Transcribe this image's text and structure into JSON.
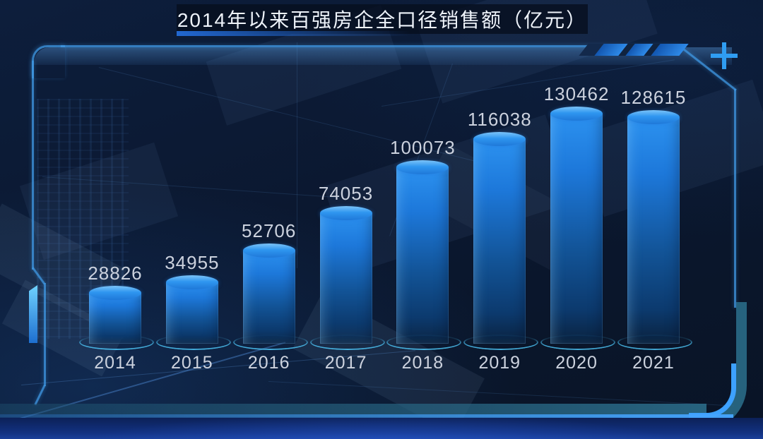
{
  "title": {
    "text": "2014年以来百强房企全口径销售额（亿元）"
  },
  "controls": {
    "expand_icon": "plus"
  },
  "chart_data": {
    "type": "bar",
    "title": "2014年以来百强房企全口径销售额（亿元）",
    "unit": "亿元",
    "categories": [
      "2014",
      "2015",
      "2016",
      "2017",
      "2018",
      "2019",
      "2020",
      "2021"
    ],
    "values": [
      28826,
      34955,
      52706,
      74053,
      100073,
      116038,
      130462,
      128615
    ],
    "xlabel": "",
    "ylim": [
      0,
      140000
    ],
    "grid": false,
    "legend": "none",
    "bar_style": "3d-cylinder",
    "value_labels_position": "above-bars"
  },
  "colors": {
    "background": "#0b1830",
    "title_text": "#eef3fa",
    "value_label": "#ccd2de",
    "year_label": "#ccd2de",
    "bar_top": "#2f96f0",
    "bar_body_top": "#2c92f0",
    "bar_body_bottom": "#0c3a6e",
    "base_ring": "#50cdff",
    "frame_border": "#3e96e1",
    "bottom_band_teal": "#2c708e",
    "edge_blue": "#46a5ff",
    "footer_band": "#123180",
    "accent": "#2f9df2"
  }
}
